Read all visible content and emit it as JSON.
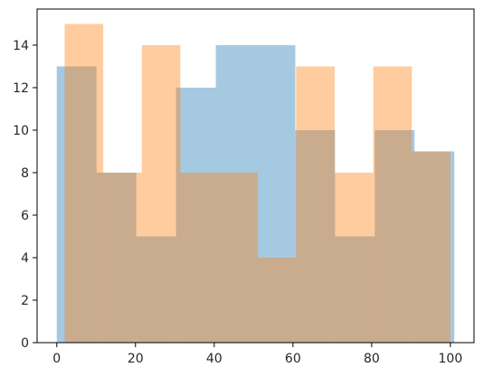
{
  "chart_data": {
    "type": "histogram",
    "title": "",
    "xlabel": "",
    "ylabel": "",
    "xlim": [
      -5,
      106
    ],
    "ylim": [
      0,
      15.7
    ],
    "grid": false,
    "legend": "none",
    "x_ticks": [
      0,
      20,
      40,
      60,
      80,
      100
    ],
    "y_ticks": [
      0,
      2,
      4,
      6,
      8,
      10,
      12,
      14
    ],
    "series": [
      {
        "color": "#1f77b4",
        "opacity": 0.4,
        "bin_edges": [
          0,
          10.1,
          20.2,
          30.3,
          40.4,
          50.5,
          60.6,
          70.7,
          80.8,
          90.9,
          101
        ],
        "counts": [
          13,
          8,
          5,
          12,
          14,
          14,
          10,
          5,
          10,
          9
        ]
      },
      {
        "color": "#ff7f0e",
        "opacity": 0.4,
        "bin_edges": [
          2,
          11.8,
          21.6,
          31.4,
          41.2,
          51,
          60.8,
          70.6,
          80.4,
          90.2,
          100
        ],
        "counts": [
          15,
          8,
          14,
          8,
          8,
          4,
          13,
          8,
          13,
          9
        ]
      }
    ]
  }
}
